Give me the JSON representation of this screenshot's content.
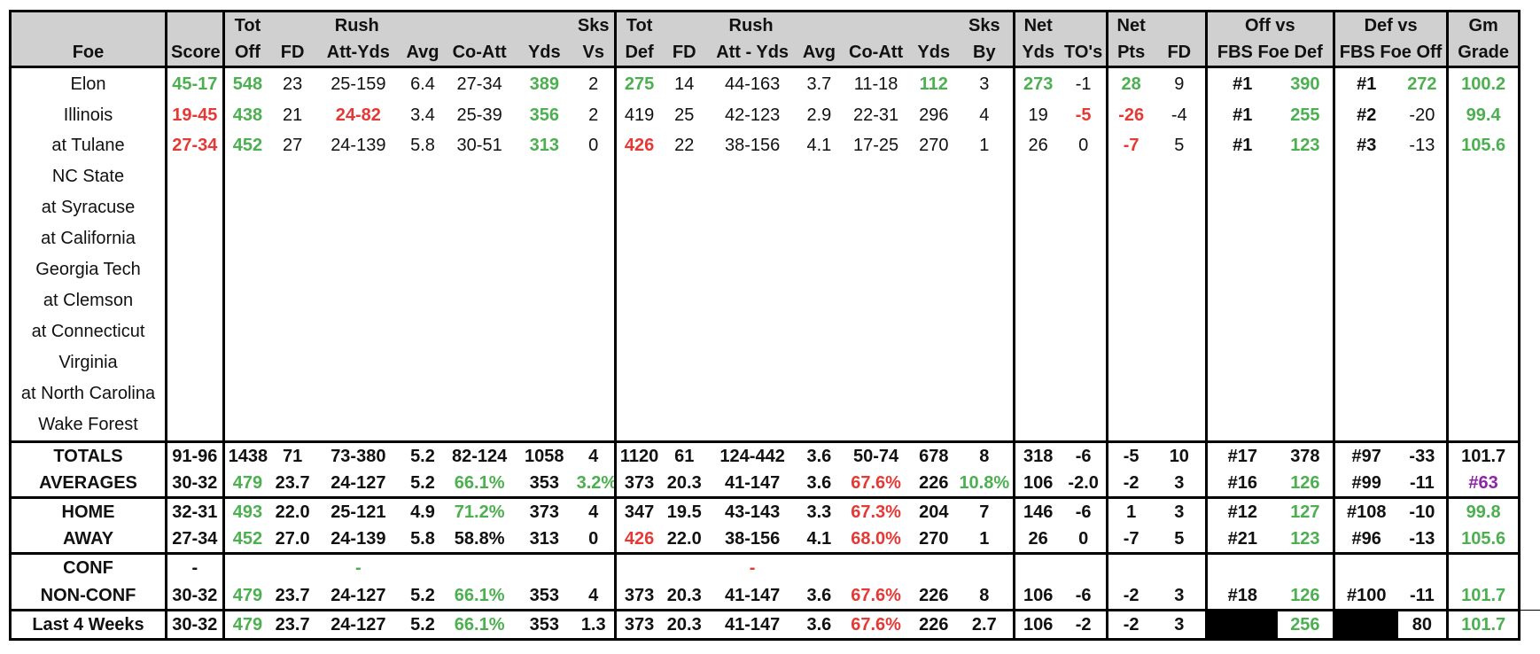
{
  "headers": {
    "row1": [
      "",
      "",
      "Tot",
      "",
      "Rush",
      "",
      "",
      "",
      "Sks",
      "Tot",
      "",
      "Rush",
      "",
      "",
      "",
      "Sks",
      "Net",
      "",
      "Net",
      "",
      "Off vs",
      "",
      "Def vs",
      "",
      "Gm"
    ],
    "row2": [
      "Foe",
      "Score",
      "Off",
      "FD",
      "Att-Yds",
      "Avg",
      "Co-Att",
      "Yds",
      "Vs",
      "Def",
      "FD",
      "Att - Yds",
      "Avg",
      "Co-Att",
      "Yds",
      "By",
      "Yds",
      "TO's",
      "Pts",
      "FD",
      "FBS Foe Def",
      "",
      "FBS Foe Off",
      "",
      "Grade"
    ]
  },
  "games": [
    {
      "foe": "Elon",
      "home": true,
      "cells": [
        "45-17",
        "548",
        "23",
        "25-159",
        "6.4",
        "27-34",
        "389",
        "2",
        "275",
        "14",
        "44-163",
        "3.7",
        "11-18",
        "112",
        "3",
        "273",
        "-1",
        "28",
        "9",
        "#1",
        "390",
        "#1",
        "272",
        "100.2"
      ],
      "colors": [
        "g",
        "g",
        "",
        "",
        "",
        "",
        "g",
        "",
        "g",
        "",
        "",
        "",
        "",
        "g",
        "",
        "g",
        "",
        "g",
        "",
        "b",
        "g",
        "b",
        "g",
        "g"
      ]
    },
    {
      "foe": "Illinois",
      "home": true,
      "cells": [
        "19-45",
        "438",
        "21",
        "24-82",
        "3.4",
        "25-39",
        "356",
        "2",
        "419",
        "25",
        "42-123",
        "2.9",
        "22-31",
        "296",
        "4",
        "19",
        "-5",
        "-26",
        "-4",
        "#1",
        "255",
        "#2",
        "-20",
        "99.4"
      ],
      "colors": [
        "r",
        "g",
        "",
        "r",
        "",
        "",
        "g",
        "",
        "",
        "",
        "",
        "",
        "",
        "",
        "",
        "",
        "r",
        "r",
        "",
        "b",
        "g",
        "b",
        "",
        "g"
      ]
    },
    {
      "foe": "at Tulane",
      "home": false,
      "cells": [
        "27-34",
        "452",
        "27",
        "24-139",
        "5.8",
        "30-51",
        "313",
        "0",
        "426",
        "22",
        "38-156",
        "4.1",
        "17-25",
        "270",
        "1",
        "26",
        "0",
        "-7",
        "5",
        "#1",
        "123",
        "#3",
        "-13",
        "105.6"
      ],
      "colors": [
        "r",
        "g",
        "",
        "",
        "",
        "",
        "g",
        "",
        "r",
        "",
        "",
        "",
        "",
        "",
        "",
        "",
        "",
        "r",
        "",
        "b",
        "g",
        "b",
        "",
        "g"
      ]
    },
    {
      "foe": "NC State",
      "home": true,
      "cells": [],
      "colors": []
    },
    {
      "foe": "at Syracuse",
      "home": false,
      "cells": [],
      "colors": []
    },
    {
      "foe": "at California",
      "home": false,
      "cells": [],
      "colors": []
    },
    {
      "foe": "Georgia Tech",
      "home": true,
      "cells": [],
      "colors": []
    },
    {
      "foe": "at Clemson",
      "home": false,
      "cells": [],
      "colors": []
    },
    {
      "foe": "at Connecticut",
      "home": false,
      "cells": [],
      "colors": []
    },
    {
      "foe": "Virginia",
      "home": true,
      "cells": [],
      "colors": []
    },
    {
      "foe": "at North Carolina",
      "home": false,
      "cells": [],
      "colors": []
    },
    {
      "foe": "Wake Forest",
      "home": true,
      "cells": [],
      "colors": []
    }
  ],
  "summary": [
    {
      "label": "TOTALS",
      "group": 1,
      "cells": [
        "91-96",
        "1438",
        "71",
        "73-380",
        "5.2",
        "82-124",
        "1058",
        "4",
        "1120",
        "61",
        "124-442",
        "3.6",
        "50-74",
        "678",
        "8",
        "318",
        "-6",
        "-5",
        "10",
        "#17",
        "378",
        "#97",
        "-33",
        "101.7"
      ],
      "colors": [
        "",
        "",
        "",
        "",
        "",
        "",
        "",
        "",
        "",
        "",
        "",
        "",
        "",
        "",
        "",
        "",
        "",
        "",
        "",
        "",
        "",
        "",
        "",
        ""
      ]
    },
    {
      "label": "AVERAGES",
      "group": 1,
      "cells": [
        "30-32",
        "479",
        "23.7",
        "24-127",
        "5.2",
        "66.1%",
        "353",
        "3.2%",
        "373",
        "20.3",
        "41-147",
        "3.6",
        "67.6%",
        "226",
        "10.8%",
        "106",
        "-2.0",
        "-2",
        "3",
        "#16",
        "126",
        "#99",
        "-11",
        "#63"
      ],
      "colors": [
        "",
        "g",
        "",
        "",
        "",
        "g",
        "",
        "g",
        "",
        "",
        "",
        "",
        "r",
        "",
        "g",
        "",
        "",
        "",
        "",
        "",
        "g",
        "",
        "",
        "p"
      ]
    },
    {
      "label": "HOME",
      "group": 2,
      "cells": [
        "32-31",
        "493",
        "22.0",
        "25-121",
        "4.9",
        "71.2%",
        "373",
        "4",
        "347",
        "19.5",
        "43-143",
        "3.3",
        "67.3%",
        "204",
        "7",
        "146",
        "-6",
        "1",
        "3",
        "#12",
        "127",
        "#108",
        "-10",
        "99.8"
      ],
      "colors": [
        "",
        "g",
        "",
        "",
        "",
        "g",
        "",
        "",
        "",
        "",
        "",
        "",
        "r",
        "",
        "",
        "",
        "",
        "",
        "",
        "",
        "g",
        "",
        "",
        "g"
      ]
    },
    {
      "label": "AWAY",
      "group": 2,
      "cells": [
        "27-34",
        "452",
        "27.0",
        "24-139",
        "5.8",
        "58.8%",
        "313",
        "0",
        "426",
        "22.0",
        "38-156",
        "4.1",
        "68.0%",
        "270",
        "1",
        "26",
        "0",
        "-7",
        "5",
        "#21",
        "123",
        "#96",
        "-13",
        "105.6"
      ],
      "colors": [
        "",
        "g",
        "",
        "",
        "",
        "",
        "",
        "",
        "r",
        "",
        "",
        "",
        "r",
        "",
        "",
        "",
        "",
        "",
        "",
        "",
        "g",
        "",
        "",
        "g"
      ]
    },
    {
      "label": "CONF",
      "group": 3,
      "cells": [
        "-",
        "",
        "",
        "-",
        "",
        "",
        "",
        "",
        "",
        "",
        "-",
        "",
        "",
        "",
        "",
        "",
        "",
        "",
        "",
        "",
        "",
        "",
        "",
        ""
      ],
      "colors": [
        "",
        "",
        "",
        "g",
        "",
        "",
        "",
        "",
        "",
        "",
        "r",
        "",
        "",
        "",
        "",
        "",
        "",
        "",
        "",
        "",
        "",
        "",
        "",
        ""
      ]
    },
    {
      "label": "NON-CONF",
      "group": 3,
      "cells": [
        "30-32",
        "479",
        "23.7",
        "24-127",
        "5.2",
        "66.1%",
        "353",
        "4",
        "373",
        "20.3",
        "41-147",
        "3.6",
        "67.6%",
        "226",
        "8",
        "106",
        "-6",
        "-2",
        "3",
        "#18",
        "126",
        "#100",
        "-11",
        "101.7"
      ],
      "colors": [
        "",
        "g",
        "",
        "",
        "",
        "g",
        "",
        "",
        "",
        "",
        "",
        "",
        "r",
        "",
        "",
        "",
        "",
        "",
        "",
        "",
        "g",
        "",
        "",
        "g"
      ]
    },
    {
      "label": "Last 4 Weeks",
      "group": 4,
      "cells": [
        "30-32",
        "479",
        "23.7",
        "24-127",
        "5.2",
        "66.1%",
        "353",
        "1.3",
        "373",
        "20.3",
        "41-147",
        "3.6",
        "67.6%",
        "226",
        "2.7",
        "106",
        "-2",
        "-2",
        "3",
        "",
        "256",
        "",
        "80",
        "101.7"
      ],
      "colors": [
        "",
        "g",
        "",
        "",
        "",
        "g",
        "",
        "",
        "",
        "",
        "",
        "",
        "r",
        "",
        "",
        "",
        "",
        "",
        "",
        "blk",
        "g",
        "blk",
        "n",
        "g"
      ]
    }
  ]
}
